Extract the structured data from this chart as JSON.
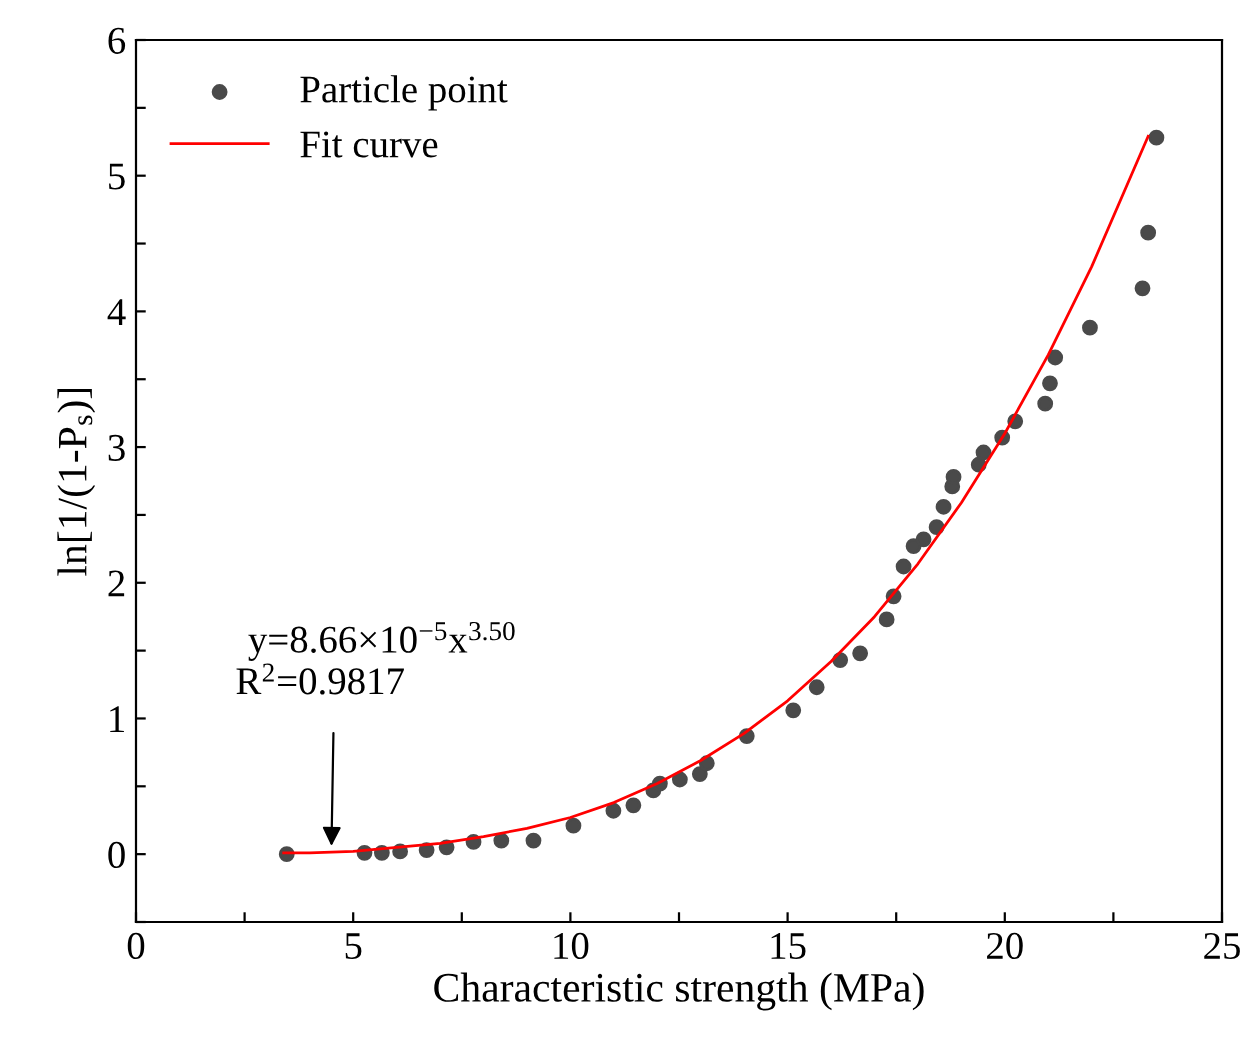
{
  "chart_data": {
    "type": "scatter",
    "xlabel": "Characteristic strength (MPa)",
    "ylabel": "ln[1/(1-P$_{s}$)]",
    "xlim": [
      0,
      25
    ],
    "ylim": [
      -0.5,
      6
    ],
    "xticks": [
      0,
      {
        "value": 2.5,
        "label": null
      },
      5,
      {
        "value": 7.5,
        "label": null
      },
      10,
      {
        "value": 12.5,
        "label": null
      },
      15,
      {
        "value": 17.5,
        "label": null
      },
      20,
      {
        "value": 22.5,
        "label": null
      },
      25
    ],
    "yticks": [
      {
        "value": -0.5,
        "label": null
      },
      0,
      {
        "value": 0.5,
        "label": null
      },
      1,
      {
        "value": 1.5,
        "label": null
      },
      2,
      {
        "value": 2.5,
        "label": null
      },
      3,
      {
        "value": 3.5,
        "label": null
      },
      4,
      {
        "value": 4.5,
        "label": null
      },
      5,
      {
        "value": 5.5,
        "label": null
      },
      6
    ],
    "grid": false,
    "legend": "top left",
    "series": [
      {
        "name": "Particle point",
        "color": "#4a4a4a",
        "marker": "circle",
        "x": [
          3.47,
          5.26,
          5.66,
          6.08,
          6.69,
          7.15,
          7.77,
          8.41,
          9.15,
          10.07,
          10.99,
          11.45,
          11.91,
          12.06,
          12.52,
          12.98,
          13.14,
          14.06,
          15.13,
          15.67,
          16.21,
          16.67,
          17.28,
          17.44,
          17.67,
          17.9,
          18.13,
          18.43,
          18.59,
          18.79,
          18.82,
          19.4,
          19.51,
          19.94,
          20.24,
          20.93,
          21.04,
          21.16,
          21.96,
          23.17,
          23.3,
          23.49
        ],
        "values": [
          0.0,
          0.01,
          0.01,
          0.02,
          0.03,
          0.05,
          0.09,
          0.1,
          0.1,
          0.21,
          0.32,
          0.36,
          0.47,
          0.52,
          0.55,
          0.59,
          0.67,
          0.87,
          1.06,
          1.23,
          1.43,
          1.48,
          1.73,
          1.9,
          2.12,
          2.27,
          2.32,
          2.41,
          2.56,
          2.71,
          2.78,
          2.87,
          2.96,
          3.07,
          3.19,
          3.32,
          3.47,
          3.66,
          3.88,
          4.17,
          4.58,
          5.28
        ]
      },
      {
        "name": "Fit curve",
        "type": "line",
        "color": "#ff0000",
        "marker": "none",
        "line_style": "solid",
        "x": [
          3.4,
          4,
          5,
          6,
          7,
          8,
          9,
          10,
          11,
          12,
          13,
          14,
          15,
          16,
          17,
          18,
          19,
          20,
          21,
          22,
          23.3
        ],
        "values": [
          0.01,
          0.01,
          0.02,
          0.05,
          0.08,
          0.13,
          0.19,
          0.27,
          0.38,
          0.52,
          0.69,
          0.89,
          1.13,
          1.42,
          1.75,
          2.14,
          2.59,
          3.1,
          3.68,
          4.33,
          5.29
        ]
      }
    ],
    "annotations": [
      "y=8.66×10$^{−5}$x$^{3.50}$",
      {
        "text": "R$^{2}$=0.9817",
        "x": 4.5,
        "y": 0.06
      }
    ]
  }
}
